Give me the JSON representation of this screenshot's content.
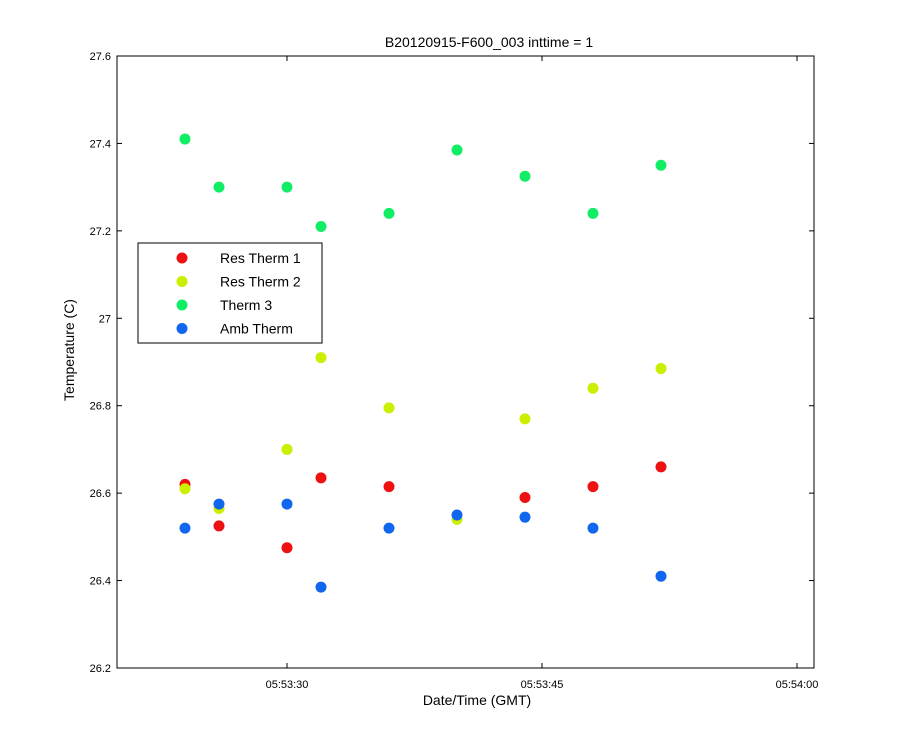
{
  "chart_data": {
    "type": "scatter",
    "title": "B20120915-F600_003 inttime = 1",
    "xlabel": "Date/Time (GMT)",
    "ylabel": "Temperature (C)",
    "xlim": [
      "05:53:20",
      "05:54:01"
    ],
    "ylim": [
      26.2,
      27.6
    ],
    "x_ticks": [
      "05:53:30",
      "05:53:45",
      "05:54:00"
    ],
    "y_ticks": [
      "26.2",
      "26.4",
      "26.6",
      "26.8",
      "27",
      "27.2",
      "27.4",
      "27.6"
    ],
    "grid": false,
    "legend_position": "left",
    "x": [
      "05:53:24",
      "05:53:26",
      "05:53:30",
      "05:53:32",
      "05:53:36",
      "05:53:40",
      "05:53:44",
      "05:53:48",
      "05:53:52"
    ],
    "series": [
      {
        "name": "Res Therm 1",
        "color": "#ee1111",
        "values": [
          26.62,
          26.525,
          26.475,
          26.635,
          26.615,
          null,
          26.59,
          26.615,
          26.66
        ]
      },
      {
        "name": "Res Therm 2",
        "color": "#ccee00",
        "values": [
          26.61,
          26.565,
          26.7,
          26.91,
          26.795,
          26.54,
          26.77,
          26.84,
          26.885
        ]
      },
      {
        "name": "Therm 3",
        "color": "#11ee66",
        "values": [
          27.41,
          27.3,
          27.3,
          27.21,
          27.24,
          27.385,
          27.325,
          27.24,
          27.35
        ]
      },
      {
        "name": "Amb Therm",
        "color": "#1166ee",
        "values": [
          26.52,
          26.575,
          26.575,
          26.385,
          26.52,
          26.55,
          26.545,
          26.52,
          26.41
        ]
      }
    ]
  }
}
